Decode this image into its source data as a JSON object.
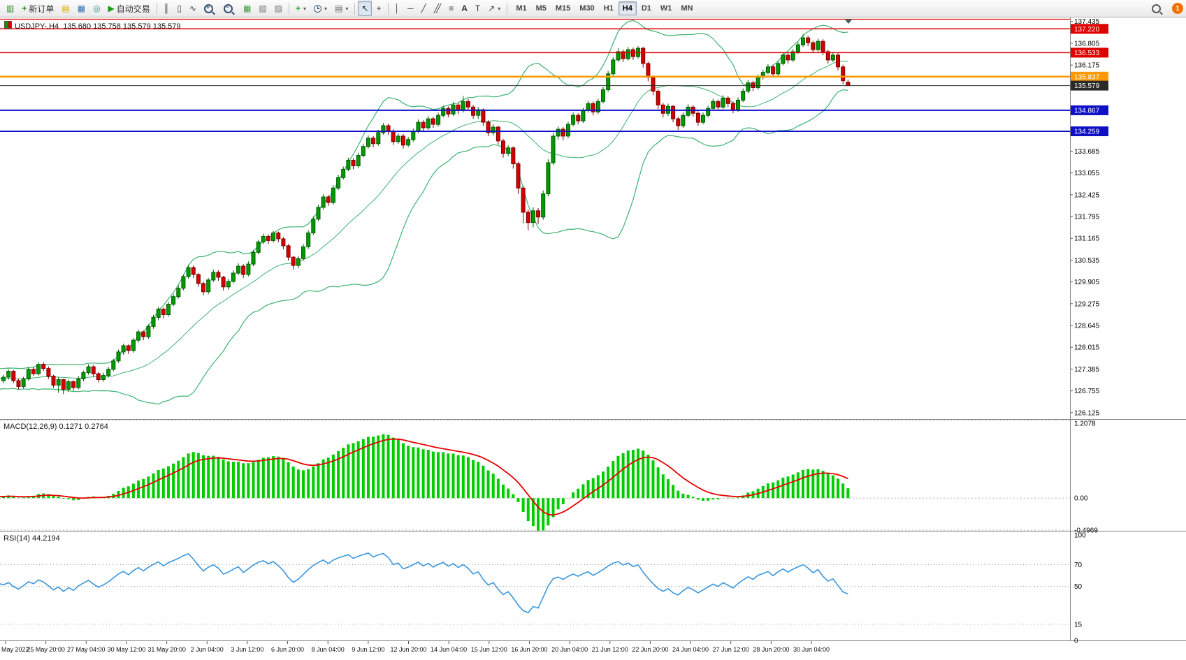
{
  "toolbar": {
    "new_order_label": "新订单",
    "autotrading_label": "自动交易",
    "timeframes": [
      "M1",
      "M5",
      "M15",
      "M30",
      "H1",
      "H4",
      "D1",
      "W1",
      "MN"
    ],
    "active_timeframe": "H4",
    "notification_count": "1",
    "icons": [
      "new-chart",
      "new-order",
      "history-center",
      "market-watch",
      "navigator",
      "autotrading",
      "bar-chart",
      "candlestick-chart",
      "line-chart",
      "zoom-in",
      "zoom-out",
      "tile-windows",
      "cascade-windows",
      "arrange-windows",
      "indicators",
      "periods",
      "templates",
      "cursor",
      "crosshair",
      "vertical-line",
      "horizontal-line",
      "trendline",
      "channel",
      "fibonacci",
      "text",
      "text-label",
      "arrows",
      "search"
    ]
  },
  "chart": {
    "symbol_label": "USDJPY-,H4",
    "ohlc_label": "135.680 135.758 135.579 135.579",
    "macd_label": "MACD(12,26,9) 0.1271 0.2764",
    "rsi_label": "RSI(14) 44.2194",
    "colors": {
      "up": "#009b00",
      "up_dark": "#005a00",
      "down": "#d40000",
      "down_dark": "#7a0000",
      "bb": "#3cb371",
      "macd_hist": "#00cc00",
      "macd_signal": "#e80000",
      "rsi": "#3a96dd",
      "level_red": "#e00000",
      "level_orange": "#ff9900",
      "level_blue": "#0f0fc8",
      "current": "#2a2a2a"
    }
  },
  "chart_data": {
    "type": "candlestick",
    "symbol": "USDJPY-",
    "timeframe": "H4",
    "ohlc_format": [
      "open",
      "high",
      "low",
      "close"
    ],
    "ohlc": [
      [
        127.05,
        127.22,
        126.98,
        127.15
      ],
      [
        127.15,
        127.38,
        127.08,
        127.32
      ],
      [
        127.32,
        127.36,
        126.98,
        127.05
      ],
      [
        127.05,
        127.1,
        126.8,
        126.88
      ],
      [
        126.88,
        127.16,
        126.82,
        127.1
      ],
      [
        127.1,
        127.44,
        127.05,
        127.38
      ],
      [
        127.38,
        127.45,
        127.18,
        127.25
      ],
      [
        127.25,
        127.58,
        127.2,
        127.52
      ],
      [
        127.52,
        127.58,
        127.33,
        127.4
      ],
      [
        127.4,
        127.46,
        127.1,
        127.18
      ],
      [
        127.18,
        127.22,
        126.84,
        126.92
      ],
      [
        126.92,
        127.15,
        126.7,
        127.08
      ],
      [
        127.08,
        127.1,
        126.66,
        126.8
      ],
      [
        126.8,
        127.08,
        126.72,
        127.02
      ],
      [
        127.02,
        127.06,
        126.76,
        126.85
      ],
      [
        126.85,
        127.18,
        126.8,
        127.1
      ],
      [
        127.1,
        127.34,
        127.03,
        127.28
      ],
      [
        127.28,
        127.52,
        127.22,
        127.45
      ],
      [
        127.45,
        127.5,
        127.16,
        127.25
      ],
      [
        127.25,
        127.3,
        127.0,
        127.08
      ],
      [
        127.08,
        127.28,
        127.02,
        127.2
      ],
      [
        127.2,
        127.45,
        127.14,
        127.38
      ],
      [
        127.38,
        127.68,
        127.32,
        127.62
      ],
      [
        127.62,
        127.95,
        127.56,
        127.88
      ],
      [
        127.88,
        128.12,
        127.8,
        128.06
      ],
      [
        128.06,
        128.1,
        127.82,
        127.92
      ],
      [
        127.92,
        128.28,
        127.86,
        128.22
      ],
      [
        128.22,
        128.52,
        128.15,
        128.46
      ],
      [
        128.46,
        128.5,
        128.22,
        128.32
      ],
      [
        128.32,
        128.68,
        128.26,
        128.62
      ],
      [
        128.62,
        128.95,
        128.55,
        128.88
      ],
      [
        128.88,
        129.18,
        128.8,
        129.12
      ],
      [
        129.12,
        129.16,
        128.85,
        128.96
      ],
      [
        128.96,
        129.33,
        128.9,
        129.26
      ],
      [
        129.26,
        129.55,
        129.2,
        129.48
      ],
      [
        129.48,
        129.8,
        129.42,
        129.72
      ],
      [
        129.72,
        130.12,
        129.66,
        130.06
      ],
      [
        130.06,
        130.4,
        130.0,
        130.32
      ],
      [
        130.32,
        130.38,
        130.02,
        130.12
      ],
      [
        130.12,
        130.16,
        129.76,
        129.86
      ],
      [
        129.86,
        129.92,
        129.52,
        129.62
      ],
      [
        129.62,
        130.02,
        129.55,
        129.96
      ],
      [
        129.96,
        130.26,
        129.9,
        130.18
      ],
      [
        130.18,
        130.24,
        129.94,
        130.04
      ],
      [
        130.04,
        130.08,
        129.66,
        129.76
      ],
      [
        129.76,
        130.0,
        129.68,
        129.92
      ],
      [
        129.92,
        130.24,
        129.86,
        130.16
      ],
      [
        130.16,
        130.44,
        130.1,
        130.36
      ],
      [
        130.36,
        130.42,
        130.02,
        130.12
      ],
      [
        130.12,
        130.5,
        130.06,
        130.42
      ],
      [
        130.42,
        130.82,
        130.36,
        130.76
      ],
      [
        130.76,
        131.12,
        130.7,
        131.06
      ],
      [
        131.06,
        131.3,
        131.0,
        131.22
      ],
      [
        131.22,
        131.28,
        131.0,
        131.1
      ],
      [
        131.1,
        131.38,
        131.04,
        131.32
      ],
      [
        131.32,
        131.36,
        131.05,
        131.15
      ],
      [
        131.15,
        131.2,
        130.85,
        130.95
      ],
      [
        130.95,
        131.0,
        130.52,
        130.62
      ],
      [
        130.62,
        130.66,
        130.26,
        130.38
      ],
      [
        130.38,
        130.66,
        130.3,
        130.58
      ],
      [
        130.58,
        131.0,
        130.52,
        130.92
      ],
      [
        130.92,
        131.4,
        130.86,
        131.32
      ],
      [
        131.32,
        131.8,
        131.26,
        131.72
      ],
      [
        131.72,
        132.14,
        131.66,
        132.06
      ],
      [
        132.06,
        132.44,
        132.0,
        132.36
      ],
      [
        132.36,
        132.42,
        132.1,
        132.2
      ],
      [
        132.2,
        132.7,
        132.14,
        132.62
      ],
      [
        132.62,
        133.0,
        132.56,
        132.92
      ],
      [
        132.92,
        133.24,
        132.86,
        133.16
      ],
      [
        133.16,
        133.5,
        133.1,
        133.42
      ],
      [
        133.42,
        133.48,
        133.16,
        133.26
      ],
      [
        133.26,
        133.64,
        133.2,
        133.56
      ],
      [
        133.56,
        133.9,
        133.5,
        133.82
      ],
      [
        133.82,
        134.14,
        133.76,
        134.06
      ],
      [
        134.06,
        134.12,
        133.8,
        133.9
      ],
      [
        133.9,
        134.3,
        133.84,
        134.22
      ],
      [
        134.22,
        134.5,
        134.16,
        134.42
      ],
      [
        134.42,
        134.48,
        134.16,
        134.26
      ],
      [
        134.26,
        134.32,
        133.86,
        133.96
      ],
      [
        133.96,
        134.2,
        133.9,
        134.12
      ],
      [
        134.12,
        134.18,
        133.76,
        133.86
      ],
      [
        133.86,
        134.1,
        133.8,
        134.02
      ],
      [
        134.02,
        134.34,
        133.96,
        134.26
      ],
      [
        134.26,
        134.6,
        134.2,
        134.52
      ],
      [
        134.52,
        134.58,
        134.26,
        134.36
      ],
      [
        134.36,
        134.7,
        134.3,
        134.62
      ],
      [
        134.62,
        134.68,
        134.36,
        134.46
      ],
      [
        134.46,
        134.8,
        134.4,
        134.72
      ],
      [
        134.72,
        135.0,
        134.66,
        134.92
      ],
      [
        134.92,
        134.98,
        134.66,
        134.76
      ],
      [
        134.76,
        135.1,
        134.7,
        135.02
      ],
      [
        135.02,
        135.08,
        134.76,
        134.86
      ],
      [
        134.86,
        135.28,
        134.8,
        135.12
      ],
      [
        135.12,
        135.2,
        134.86,
        134.96
      ],
      [
        134.96,
        135.02,
        134.62,
        134.72
      ],
      [
        134.72,
        134.96,
        134.62,
        134.88
      ],
      [
        134.88,
        134.92,
        134.42,
        134.52
      ],
      [
        134.52,
        134.58,
        134.12,
        134.22
      ],
      [
        134.22,
        134.46,
        134.14,
        134.38
      ],
      [
        134.38,
        134.42,
        133.88,
        133.98
      ],
      [
        133.98,
        134.04,
        133.5,
        133.62
      ],
      [
        133.62,
        133.86,
        133.54,
        133.78
      ],
      [
        133.78,
        133.82,
        133.18,
        133.32
      ],
      [
        133.32,
        133.38,
        132.45,
        132.62
      ],
      [
        132.62,
        132.68,
        131.6,
        131.92
      ],
      [
        131.92,
        132.0,
        131.4,
        131.62
      ],
      [
        131.62,
        132.06,
        131.48,
        131.96
      ],
      [
        131.96,
        132.04,
        131.58,
        131.78
      ],
      [
        131.78,
        132.55,
        131.7,
        132.45
      ],
      [
        132.45,
        133.45,
        132.38,
        133.35
      ],
      [
        133.35,
        134.22,
        133.28,
        134.12
      ],
      [
        134.12,
        134.4,
        134.02,
        134.32
      ],
      [
        134.32,
        134.38,
        134.0,
        134.12
      ],
      [
        134.12,
        134.54,
        134.06,
        134.46
      ],
      [
        134.46,
        134.8,
        134.4,
        134.72
      ],
      [
        134.72,
        134.78,
        134.46,
        134.56
      ],
      [
        134.56,
        134.94,
        134.5,
        134.86
      ],
      [
        134.86,
        135.14,
        134.8,
        135.06
      ],
      [
        135.06,
        135.12,
        134.72,
        134.82
      ],
      [
        134.82,
        135.2,
        134.76,
        135.12
      ],
      [
        135.12,
        135.54,
        135.06,
        135.46
      ],
      [
        135.46,
        136.0,
        135.4,
        135.92
      ],
      [
        135.92,
        136.4,
        135.86,
        136.32
      ],
      [
        136.32,
        136.66,
        136.26,
        136.56
      ],
      [
        136.56,
        136.62,
        136.26,
        136.36
      ],
      [
        136.36,
        136.7,
        136.3,
        136.62
      ],
      [
        136.62,
        136.68,
        136.32,
        136.42
      ],
      [
        136.42,
        136.72,
        136.36,
        136.66
      ],
      [
        136.66,
        136.7,
        136.1,
        136.22
      ],
      [
        136.22,
        136.28,
        135.7,
        135.82
      ],
      [
        135.82,
        135.88,
        135.3,
        135.42
      ],
      [
        135.42,
        135.48,
        134.9,
        135.02
      ],
      [
        135.02,
        135.08,
        134.66,
        134.78
      ],
      [
        134.78,
        135.06,
        134.7,
        134.98
      ],
      [
        134.98,
        135.02,
        134.52,
        134.62
      ],
      [
        134.62,
        134.68,
        134.3,
        134.42
      ],
      [
        134.42,
        134.8,
        134.36,
        134.72
      ],
      [
        134.72,
        135.04,
        134.66,
        134.96
      ],
      [
        134.96,
        135.02,
        134.68,
        134.78
      ],
      [
        134.78,
        134.84,
        134.42,
        134.52
      ],
      [
        134.52,
        134.8,
        134.46,
        134.72
      ],
      [
        134.72,
        135.0,
        134.66,
        134.92
      ],
      [
        134.92,
        135.2,
        134.86,
        135.12
      ],
      [
        135.12,
        135.18,
        134.86,
        134.96
      ],
      [
        134.96,
        135.3,
        134.9,
        135.22
      ],
      [
        135.22,
        135.28,
        134.96,
        135.06
      ],
      [
        135.06,
        135.12,
        134.78,
        134.88
      ],
      [
        134.88,
        135.24,
        134.82,
        135.16
      ],
      [
        135.16,
        135.5,
        135.1,
        135.42
      ],
      [
        135.42,
        135.74,
        135.36,
        135.66
      ],
      [
        135.66,
        135.72,
        135.42,
        135.52
      ],
      [
        135.52,
        135.9,
        135.46,
        135.82
      ],
      [
        135.82,
        136.04,
        135.76,
        135.96
      ],
      [
        135.96,
        136.2,
        135.9,
        136.12
      ],
      [
        136.12,
        136.18,
        135.82,
        135.92
      ],
      [
        135.92,
        136.3,
        135.86,
        136.22
      ],
      [
        136.22,
        136.54,
        136.16,
        136.46
      ],
      [
        136.46,
        136.52,
        136.22,
        136.32
      ],
      [
        136.32,
        136.64,
        136.26,
        136.56
      ],
      [
        136.56,
        136.84,
        136.5,
        136.76
      ],
      [
        136.76,
        137.06,
        136.7,
        136.96
      ],
      [
        136.96,
        137.02,
        136.72,
        136.82
      ],
      [
        136.82,
        136.88,
        136.52,
        136.62
      ],
      [
        136.62,
        136.94,
        136.56,
        136.86
      ],
      [
        136.86,
        136.92,
        136.46,
        136.56
      ],
      [
        136.56,
        136.62,
        136.22,
        136.32
      ],
      [
        136.32,
        136.54,
        136.26,
        136.46
      ],
      [
        136.46,
        136.52,
        136.02,
        136.12
      ],
      [
        136.12,
        136.18,
        135.62,
        135.72
      ],
      [
        135.68,
        135.758,
        135.579,
        135.579
      ]
    ],
    "overlays": {
      "bollinger_bands": {
        "period": 20,
        "deviation": 2
      }
    },
    "indicators": [
      {
        "type": "bar",
        "name": "MACD",
        "params": [
          12,
          26,
          9
        ],
        "current_values": "0.1271 0.2764",
        "range": [
          -0.4969,
          1.2078
        ],
        "axis": [
          "1.2078",
          "0.00",
          "-0.4969"
        ]
      },
      {
        "type": "line",
        "name": "RSI",
        "params": [
          14
        ],
        "current_values": "44.2194",
        "range": [
          0,
          100
        ],
        "levels": [
          70,
          50,
          15
        ],
        "axis": [
          "100",
          "70",
          "50",
          "15",
          "0"
        ]
      }
    ],
    "price_levels": [
      {
        "price": 137.5,
        "color": "#e00000",
        "width": 1.2,
        "badge": ""
      },
      {
        "price": 137.22,
        "color": "#e00000",
        "width": 1.5,
        "badge": "137.220"
      },
      {
        "price": 136.533,
        "color": "#e00000",
        "width": 1.5,
        "badge": "136.533"
      },
      {
        "price": 135.837,
        "color": "#ff9900",
        "width": 2.5,
        "badge": "135.837"
      },
      {
        "price": 134.867,
        "color": "#0f0fc8",
        "width": 2,
        "badge": "134.867"
      },
      {
        "price": 134.259,
        "color": "#0f0fc8",
        "width": 2,
        "badge": "134.259"
      }
    ],
    "current_price": "135.579",
    "y_axis_ticks": [
      "137.435",
      "136.805",
      "136.175",
      "133.685",
      "133.055",
      "132.425",
      "131.795",
      "131.165",
      "130.535",
      "129.905",
      "129.275",
      "128.645",
      "128.015",
      "127.385",
      "126.755",
      "126.125"
    ],
    "x_axis_labels": [
      "May 2022",
      "25 May 20:00",
      "27 May 04:00",
      "30 May 12:00",
      "31 May 20:00",
      "2 Jun 04:00",
      "3 Jun 12:00",
      "6 Jun 20:00",
      "8 Jun 04:00",
      "9 Jun 12:00",
      "12 Jun 20:00",
      "14 Jun 04:00",
      "15 Jun 12:00",
      "16 Jun 20:00",
      "20 Jun 04:00",
      "21 Jun 12:00",
      "22 Jun 20:00",
      "24 Jun 04:00",
      "27 Jun 12:00",
      "28 Jun 20:00",
      "30 Jun 04:00"
    ]
  }
}
